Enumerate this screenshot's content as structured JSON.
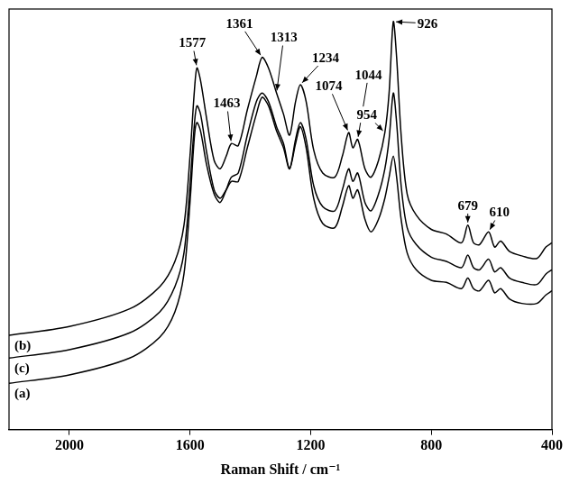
{
  "chart_data": {
    "type": "line",
    "x_label": "Raman Shift / cm⁻¹",
    "x": [
      2200,
      2000,
      1800,
      1700,
      1650,
      1620,
      1600,
      1585,
      1577,
      1565,
      1545,
      1520,
      1500,
      1480,
      1463,
      1440,
      1410,
      1380,
      1361,
      1340,
      1313,
      1290,
      1270,
      1250,
      1234,
      1215,
      1190,
      1160,
      1120,
      1095,
      1074,
      1060,
      1044,
      1020,
      1000,
      975,
      954,
      940,
      926,
      915,
      900,
      880,
      850,
      800,
      750,
      700,
      679,
      660,
      640,
      610,
      590,
      570,
      540,
      500,
      450,
      420,
      400
    ],
    "series": [
      {
        "name": "(b)",
        "color": "#000000",
        "values": [
          22.4,
          24.5,
          28.7,
          34,
          40,
          48.6,
          65,
          81,
          86,
          83,
          74,
          64,
          62,
          65,
          68,
          67.5,
          76,
          84,
          88.5,
          86,
          80,
          75,
          70,
          78,
          82,
          78,
          66.5,
          61,
          60,
          65,
          70.6,
          67,
          69,
          62,
          60,
          64,
          70.6,
          80,
          97,
          88.5,
          70,
          56,
          51,
          47.6,
          46.5,
          44.4,
          48.6,
          44.4,
          44,
          47,
          43.4,
          44.8,
          42.3,
          41.3,
          40.7,
          43.4,
          44.4
        ]
      },
      {
        "name": "(c)",
        "color": "#000000",
        "values": [
          17,
          19,
          23,
          28,
          34,
          42,
          58,
          73,
          77,
          75,
          66,
          57,
          55,
          57,
          59,
          59,
          67,
          75,
          79,
          77,
          71,
          67,
          62,
          69,
          73,
          69,
          58,
          53,
          52,
          57,
          62,
          59,
          61,
          54,
          52,
          56,
          62,
          69,
          80,
          73,
          58,
          48,
          44,
          41,
          40,
          38.5,
          41.5,
          38.5,
          38,
          40.5,
          37.5,
          38.5,
          36,
          35,
          34.5,
          37,
          38
        ]
      },
      {
        "name": "(a)",
        "color": "#000000",
        "values": [
          11,
          13,
          17,
          22,
          28,
          37,
          54,
          70,
          73,
          71,
          63,
          56,
          54,
          57,
          60,
          61,
          70,
          78,
          80,
          78,
          72,
          68,
          62,
          68,
          72,
          67,
          55,
          49,
          48,
          53,
          58,
          55,
          57,
          50,
          47,
          50,
          55,
          60,
          65,
          60,
          50,
          42,
          38,
          35.5,
          35,
          33.5,
          36,
          33.5,
          33,
          35.5,
          32.5,
          33.5,
          31,
          30,
          30,
          32,
          33
        ]
      }
    ],
    "peak_labels": [
      1577,
      1463,
      1361,
      1313,
      1234,
      1074,
      1044,
      954,
      926,
      679,
      610
    ],
    "xlim": [
      2200,
      400
    ],
    "xticks": [
      2000,
      1600,
      1200,
      800,
      400
    ],
    "ylim": [
      0,
      100
    ],
    "tick_labels": "x",
    "grid": false
  }
}
